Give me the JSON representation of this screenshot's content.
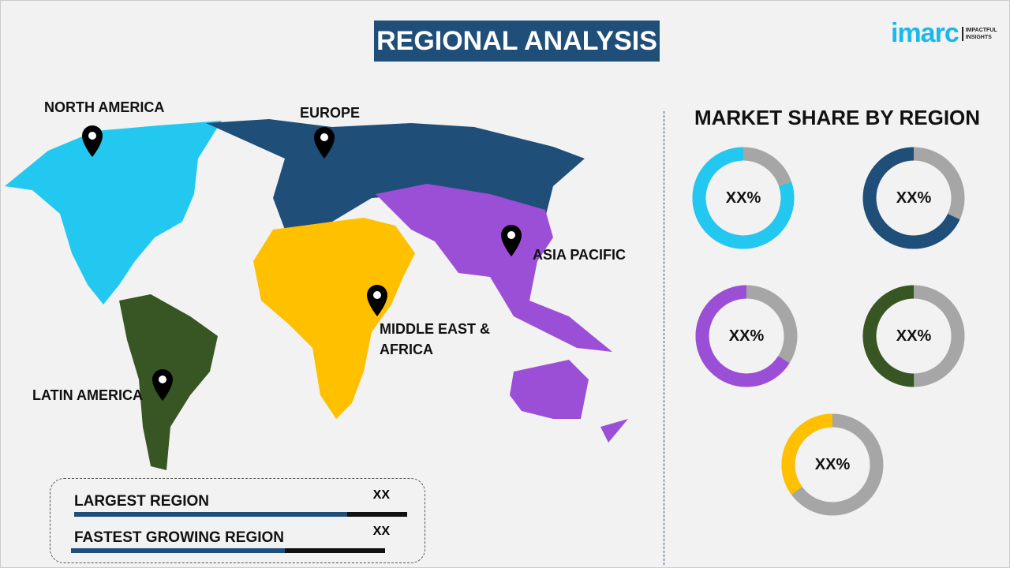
{
  "title": "REGIONAL ANALYSIS",
  "logo": {
    "brand": "imarc",
    "tagline_1": "IMPACTFUL",
    "tagline_2": "INSIGHTS"
  },
  "map_labels": {
    "north_america": "NORTH AMERICA",
    "europe": "EUROPE",
    "asia_pacific": "ASIA PACIFIC",
    "mea": "MIDDLE EAST & AFRICA",
    "latin_america": "LATIN AMERICA"
  },
  "market_share": {
    "title": "MARKET SHARE BY REGION",
    "donuts": [
      {
        "label": "XX%",
        "color": "#22c8f0",
        "share": 0.8
      },
      {
        "label": "XX%",
        "color": "#1f4e79",
        "share": 0.68
      },
      {
        "label": "XX%",
        "color": "#9b4fd6",
        "share": 0.66
      },
      {
        "label": "XX%",
        "color": "#375623",
        "share": 0.5
      },
      {
        "label": "XX%",
        "color": "#ffc000",
        "share": 0.35
      }
    ],
    "remainder_color": "#a6a6a6"
  },
  "summary": [
    {
      "label": "LARGEST REGION",
      "value": "XX",
      "fill": 0.82
    },
    {
      "label": "FASTEST GROWING REGION",
      "value": "XX",
      "fill": 0.68
    }
  ]
}
